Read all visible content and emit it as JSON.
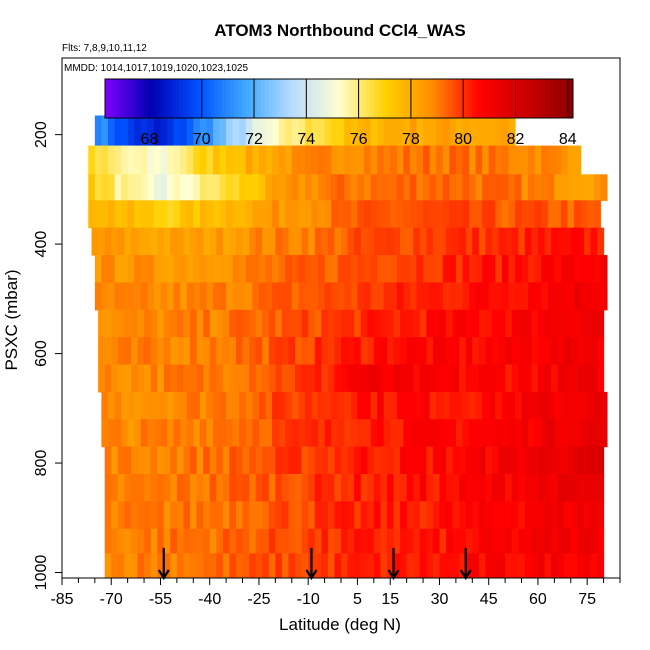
{
  "chart_data": {
    "type": "heatmap",
    "title": "ATOM3 Northbound CCl4_WAS",
    "annotations": {
      "flights": "Flts: 7,8,9,10,11,12",
      "dates": "MMDD: 1014,1017,1019,1020,1023,1025"
    },
    "xlabel": "Latitude (deg N)",
    "ylabel": "PSXC (mbar)",
    "xlim": [
      -85,
      85
    ],
    "ylim": [
      1010,
      60
    ],
    "x_ticks": [
      -85,
      -70,
      -55,
      -40,
      -25,
      -10,
      5,
      15,
      30,
      45,
      60,
      75
    ],
    "x_minor_tick_step": 5,
    "y_ticks": [
      200,
      400,
      600,
      800,
      1000
    ],
    "colorbar": {
      "range": [
        66.3,
        84.2
      ],
      "ticks": [
        68,
        70,
        72,
        74,
        76,
        78,
        80,
        82,
        84
      ],
      "colors": [
        "#7F00FF",
        "#0000B4",
        "#0050FF",
        "#40A8FF",
        "#B8DCFF",
        "#FFFFD0",
        "#FFD000",
        "#FF8C00",
        "#FF0000",
        "#CC0000",
        "#8B0000"
      ],
      "placement": "top"
    },
    "field": {
      "x_nodes": [
        -75,
        -65,
        -55,
        -45,
        -35,
        -25,
        -15,
        -5,
        5,
        15,
        25,
        35,
        45,
        55,
        65,
        75
      ],
      "pressure_levels": [
        190,
        250,
        295,
        345,
        395,
        445,
        495,
        545,
        595,
        645,
        695,
        745,
        795,
        845,
        895,
        945,
        985
      ],
      "lat_extent_south": [
        -75,
        -77,
        -77,
        -77,
        -76,
        -75,
        -75,
        -74,
        -74,
        -74,
        -73,
        -73,
        -72,
        -72,
        -72,
        -72,
        -72
      ],
      "lat_extent_north": [
        52,
        72,
        80,
        79,
        80,
        80,
        80,
        80,
        80,
        80,
        80,
        80,
        80,
        80,
        80,
        80,
        80
      ],
      "values": [
        [
          71.5,
          69.5,
          68.5,
          70.5,
          72.5,
          74.5,
          75.8,
          76.8,
          77.5,
          78.0,
          78.2,
          78.2,
          78.2,
          78.2,
          78.2,
          78.2
        ],
        [
          76.5,
          75.5,
          75.0,
          76.5,
          77.5,
          78.0,
          78.5,
          78.8,
          79.0,
          79.0,
          79.2,
          79.2,
          79.0,
          79.0,
          78.8,
          78.5
        ],
        [
          77.0,
          75.5,
          74.8,
          75.5,
          76.5,
          77.5,
          78.5,
          79.0,
          79.2,
          79.2,
          79.4,
          79.4,
          79.2,
          79.0,
          78.8,
          78.5
        ],
        [
          78.0,
          77.5,
          77.0,
          77.3,
          77.8,
          78.2,
          78.8,
          79.0,
          79.3,
          79.5,
          79.6,
          79.6,
          79.5,
          79.5,
          79.5,
          79.3
        ],
        [
          78.5,
          78.3,
          78.2,
          78.2,
          78.5,
          78.8,
          79.0,
          79.2,
          79.5,
          79.7,
          79.9,
          80.0,
          80.0,
          80.1,
          80.2,
          80.3
        ],
        [
          78.6,
          78.6,
          78.5,
          78.6,
          78.8,
          79.0,
          79.2,
          79.4,
          79.7,
          79.9,
          80.1,
          80.2,
          80.3,
          80.5,
          80.7,
          80.8
        ],
        [
          78.7,
          78.7,
          78.7,
          78.8,
          79.0,
          79.2,
          79.4,
          79.6,
          79.8,
          80.0,
          80.2,
          80.4,
          80.5,
          80.7,
          80.9,
          81.2
        ],
        [
          78.7,
          78.7,
          78.8,
          78.9,
          79.1,
          79.3,
          79.5,
          79.8,
          80.0,
          80.2,
          80.4,
          80.5,
          80.6,
          80.8,
          81.0,
          81.2
        ],
        [
          78.8,
          78.8,
          78.9,
          79.0,
          79.2,
          79.4,
          79.7,
          80.0,
          80.3,
          80.6,
          80.6,
          80.6,
          80.6,
          80.8,
          81.0,
          81.1
        ],
        [
          78.8,
          78.8,
          78.9,
          79.0,
          79.2,
          79.5,
          79.8,
          80.1,
          81.0,
          80.8,
          80.7,
          80.6,
          80.6,
          80.7,
          80.9,
          81.0
        ],
        [
          78.8,
          78.8,
          78.9,
          79.0,
          79.2,
          79.5,
          79.8,
          80.1,
          80.5,
          80.5,
          80.5,
          80.5,
          80.6,
          80.8,
          81.0,
          81.2
        ],
        [
          78.8,
          78.8,
          78.9,
          79.1,
          79.3,
          79.5,
          79.8,
          80.0,
          80.4,
          80.5,
          80.5,
          80.6,
          80.7,
          80.9,
          81.2,
          81.4
        ],
        [
          78.8,
          78.9,
          79.0,
          79.1,
          79.3,
          79.5,
          79.8,
          80.0,
          80.3,
          80.4,
          80.5,
          80.6,
          80.8,
          81.1,
          81.4,
          81.6
        ],
        [
          78.8,
          78.9,
          79.0,
          79.1,
          79.3,
          79.5,
          79.7,
          80.0,
          80.2,
          80.3,
          80.4,
          80.5,
          80.7,
          81.0,
          81.2,
          81.3
        ],
        [
          78.8,
          78.9,
          79.0,
          79.1,
          79.3,
          79.5,
          79.7,
          79.9,
          80.1,
          80.2,
          80.3,
          80.4,
          80.6,
          80.8,
          81.0,
          81.1
        ],
        [
          78.9,
          79.0,
          79.1,
          79.2,
          79.3,
          79.5,
          79.7,
          79.9,
          80.1,
          80.2,
          80.3,
          80.4,
          80.6,
          80.8,
          81.0,
          81.1
        ],
        [
          78.9,
          79.0,
          79.1,
          79.2,
          79.3,
          79.5,
          79.7,
          79.9,
          80.1,
          80.2,
          80.3,
          80.4,
          80.6,
          80.7,
          80.9,
          81.0
        ]
      ]
    },
    "arrows": {
      "direction": "down",
      "latitudes": [
        -54,
        -9,
        16,
        38
      ],
      "pressure_top": 955,
      "pressure_bottom": 1010
    }
  }
}
